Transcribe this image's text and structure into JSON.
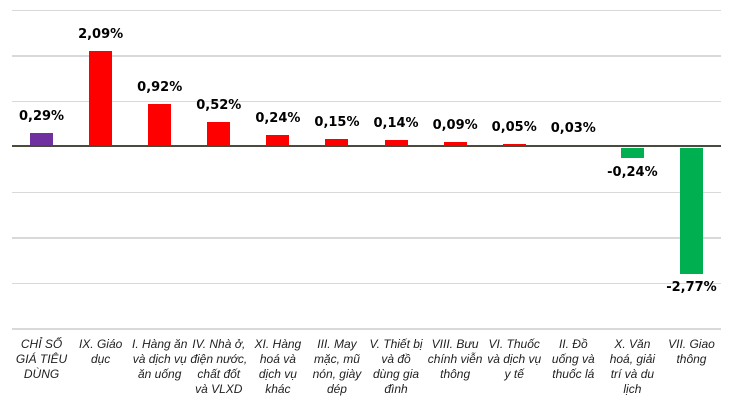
{
  "chart_data": {
    "type": "bar",
    "title": "",
    "xlabel": "",
    "ylabel": "",
    "legend": "none",
    "grid": true,
    "ylim": [
      -4,
      3
    ],
    "gridline_step": 1,
    "categories": [
      "CHỈ SỐ GIÁ TIÊU DÙNG",
      "IX. Giáo dục",
      "I. Hàng ăn và dịch vụ ăn uống",
      "IV. Nhà ở, điện nước, chất đốt và VLXD",
      "XI. Hàng hoá và dịch vụ khác",
      "III. May mặc, mũ nón, giày dép",
      "V. Thiết bị và đồ dùng gia đình",
      "VIII. Bưu chính viễn thông",
      "VI. Thuốc và dịch vụ y tế",
      "II. Đồ uống và thuốc lá",
      "X. Văn hoá, giải trí và du lịch",
      "VII. Giao thông"
    ],
    "values": [
      0.29,
      2.09,
      0.92,
      0.52,
      0.24,
      0.15,
      0.14,
      0.09,
      0.05,
      0.03,
      -0.24,
      -2.77
    ],
    "value_labels": [
      "0,29%",
      "2,09%",
      "0,92%",
      "0,52%",
      "0,24%",
      "0,15%",
      "0,14%",
      "0,09%",
      "0,05%",
      "0,03%",
      "-0,24%",
      "-2,77%"
    ],
    "bar_colors": [
      "#7030A0",
      "#FF0000",
      "#FF0000",
      "#FF0000",
      "#FF0000",
      "#FF0000",
      "#FF0000",
      "#FF0000",
      "#FF0000",
      "#FF0000",
      "#00B050",
      "#00B050"
    ]
  },
  "colors": {
    "positive_bar": "#FF0000",
    "negative_bar": "#00B050",
    "total_bar": "#7030A0",
    "gridline": "#d9d9d9",
    "axis": "#4a4a3f",
    "value_label_text": "#000000",
    "category_label_text": "#1f1f1f",
    "background": "#ffffff"
  }
}
